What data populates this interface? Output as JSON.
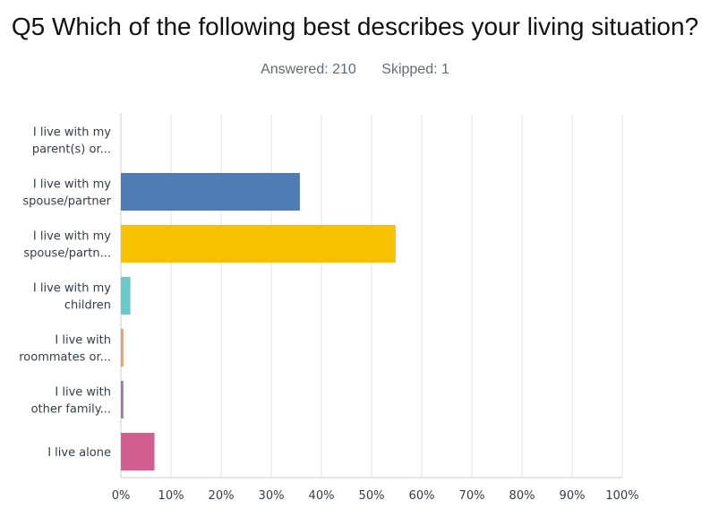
{
  "question": "Q5 Which of the following best describes your living situation?",
  "answered_label": "Answered:",
  "answered": "210",
  "skipped_label": "Skipped:",
  "skipped": "1",
  "chart_data": {
    "type": "bar",
    "orientation": "horizontal",
    "categories": [
      [
        "I live with my",
        "parent(s) or..."
      ],
      [
        "I live with my",
        "spouse/partner"
      ],
      [
        "I live with my",
        "spouse/partn..."
      ],
      [
        "I live with my",
        "children"
      ],
      [
        "I live with",
        "roommates or..."
      ],
      [
        "I live with",
        "other family..."
      ],
      [
        "I live alone"
      ]
    ],
    "values": [
      0.0,
      35.7,
      54.8,
      1.9,
      0.5,
      0.5,
      6.7
    ],
    "colors": [
      "#8cc63f",
      "#507cb6",
      "#f6c100",
      "#6bc8cd",
      "#f79a5e",
      "#9f7aa6",
      "#d25f90"
    ],
    "xlim": [
      0,
      100
    ],
    "x_ticks": [
      "0%",
      "10%",
      "20%",
      "30%",
      "40%",
      "50%",
      "60%",
      "70%",
      "80%",
      "90%",
      "100%"
    ],
    "grid": true
  }
}
